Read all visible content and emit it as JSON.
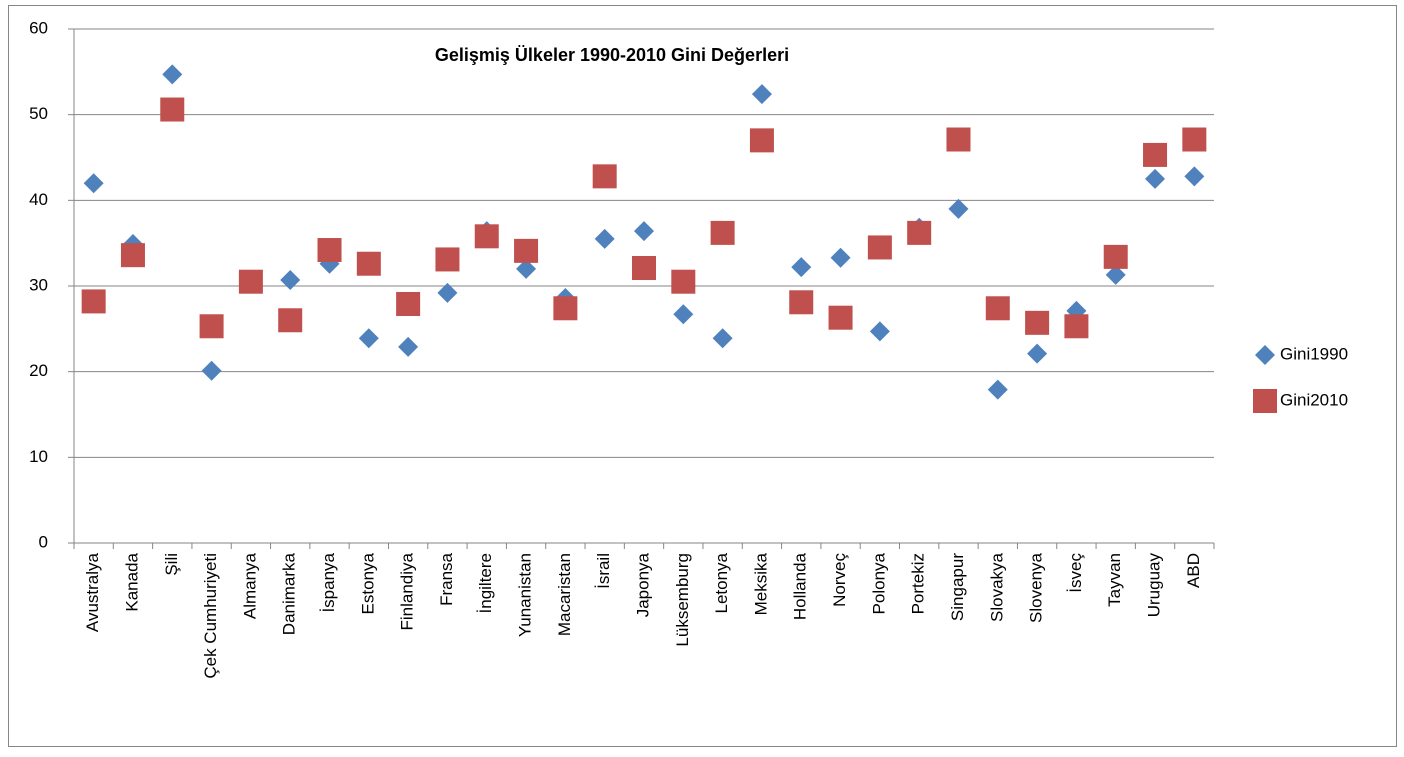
{
  "chart_data": {
    "type": "scatter",
    "title": "Gelişmiş Ülkeler 1990-2010 Gini  Değerleri",
    "categories": [
      "Avustralya",
      "Kanada",
      "Şili",
      "Çek Cumhuriyeti",
      "Almanya",
      "Danimarka",
      "İspanya",
      "Estonya",
      "Finlandiya",
      "Fransa",
      "İngiltere",
      "Yunanistan",
      "Macaristan",
      "İsrail",
      "Japonya",
      "Lüksemburg",
      "Letonya",
      "Meksika",
      "Hollanda",
      "Norveç",
      "Polonya",
      "Portekiz",
      "Singapur",
      "Slovakya",
      "Slovenya",
      "İsveç",
      "Tayvan",
      "Uruguay",
      "ABD"
    ],
    "series": [
      {
        "name": "Gini1990",
        "color": "#4f81bd",
        "marker": "diamond",
        "values": [
          42.0,
          34.9,
          54.7,
          20.1,
          30.6,
          30.7,
          32.6,
          23.9,
          22.9,
          29.2,
          36.4,
          32.0,
          28.6,
          35.5,
          36.4,
          26.7,
          23.9,
          52.4,
          32.2,
          33.3,
          24.7,
          36.8,
          39.0,
          17.9,
          22.1,
          27.1,
          31.3,
          42.5,
          42.8
        ]
      },
      {
        "name": "Gini2010",
        "color": "#c0504d",
        "marker": "square",
        "values": [
          28.2,
          33.6,
          50.6,
          25.3,
          30.5,
          26.0,
          34.2,
          32.6,
          27.9,
          33.1,
          35.8,
          34.1,
          27.4,
          42.8,
          32.1,
          30.5,
          36.2,
          47.0,
          28.1,
          26.3,
          34.5,
          36.2,
          47.1,
          27.4,
          25.7,
          25.3,
          33.4,
          45.3,
          47.1
        ]
      }
    ],
    "ylim": [
      0,
      60
    ],
    "yticks": [
      0,
      10,
      20,
      30,
      40,
      50,
      60
    ],
    "grid": true,
    "legend": "right"
  }
}
